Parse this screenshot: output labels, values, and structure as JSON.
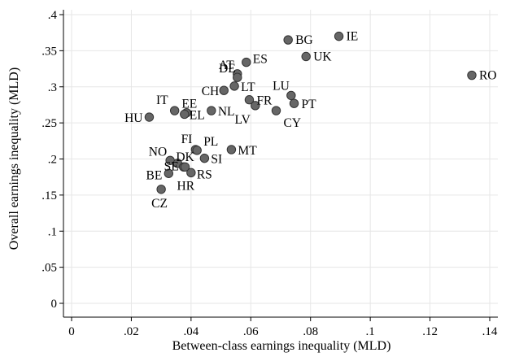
{
  "chart_data": {
    "type": "scatter",
    "xlabel": "Between-class earnings inequality (MLD)",
    "ylabel": "Overall earnings inequality (MLD)",
    "xlim": [
      0,
      0.14
    ],
    "ylim": [
      0,
      0.4
    ],
    "xticks": [
      0,
      0.02,
      0.04,
      0.06,
      0.08,
      0.1,
      0.12,
      0.14
    ],
    "xtick_labels": [
      "0",
      ".02",
      ".04",
      ".06",
      ".08",
      ".1",
      ".12",
      ".14"
    ],
    "yticks": [
      0,
      0.05,
      0.1,
      0.15,
      0.2,
      0.25,
      0.3,
      0.35,
      0.4
    ],
    "ytick_labels": [
      "0",
      ".05",
      ".1",
      ".15",
      ".2",
      ".25",
      ".3",
      ".35",
      ".4"
    ],
    "grid": true,
    "marker_color": "#666666",
    "points": [
      {
        "label": "RO",
        "x": 0.134,
        "y": 0.316
      },
      {
        "label": "IE",
        "x": 0.0895,
        "y": 0.37
      },
      {
        "label": "BG",
        "x": 0.0725,
        "y": 0.365
      },
      {
        "label": "UK",
        "x": 0.0785,
        "y": 0.342
      },
      {
        "label": "AT",
        "x": 0.0555,
        "y": 0.318
      },
      {
        "label": "ES",
        "x": 0.0585,
        "y": 0.334
      },
      {
        "label": "DE",
        "x": 0.0555,
        "y": 0.313
      },
      {
        "label": "LT",
        "x": 0.0545,
        "y": 0.301
      },
      {
        "label": "CH",
        "x": 0.051,
        "y": 0.295
      },
      {
        "label": "LU",
        "x": 0.0735,
        "y": 0.288
      },
      {
        "label": "PT",
        "x": 0.0745,
        "y": 0.277
      },
      {
        "label": "FR",
        "x": 0.0595,
        "y": 0.282
      },
      {
        "label": "LV",
        "x": 0.0615,
        "y": 0.274
      },
      {
        "label": "CY",
        "x": 0.0685,
        "y": 0.267
      },
      {
        "label": "IT",
        "x": 0.0345,
        "y": 0.267
      },
      {
        "label": "EE",
        "x": 0.0385,
        "y": 0.264
      },
      {
        "label": "EL",
        "x": 0.0378,
        "y": 0.262
      },
      {
        "label": "NL",
        "x": 0.0468,
        "y": 0.267
      },
      {
        "label": "HU",
        "x": 0.026,
        "y": 0.258
      },
      {
        "label": "FI",
        "x": 0.0415,
        "y": 0.213
      },
      {
        "label": "PL",
        "x": 0.042,
        "y": 0.212
      },
      {
        "label": "MT",
        "x": 0.0535,
        "y": 0.213
      },
      {
        "label": "SI",
        "x": 0.0445,
        "y": 0.201
      },
      {
        "label": "NO",
        "x": 0.033,
        "y": 0.198
      },
      {
        "label": "DK",
        "x": 0.0355,
        "y": 0.194
      },
      {
        "label": "SE",
        "x": 0.0375,
        "y": 0.189
      },
      {
        "label": "BE",
        "x": 0.0325,
        "y": 0.18
      },
      {
        "label": "RS",
        "x": 0.04,
        "y": 0.181
      },
      {
        "label": "HR",
        "x": 0.038,
        "y": 0.189
      },
      {
        "label": "CZ",
        "x": 0.03,
        "y": 0.158
      }
    ]
  }
}
